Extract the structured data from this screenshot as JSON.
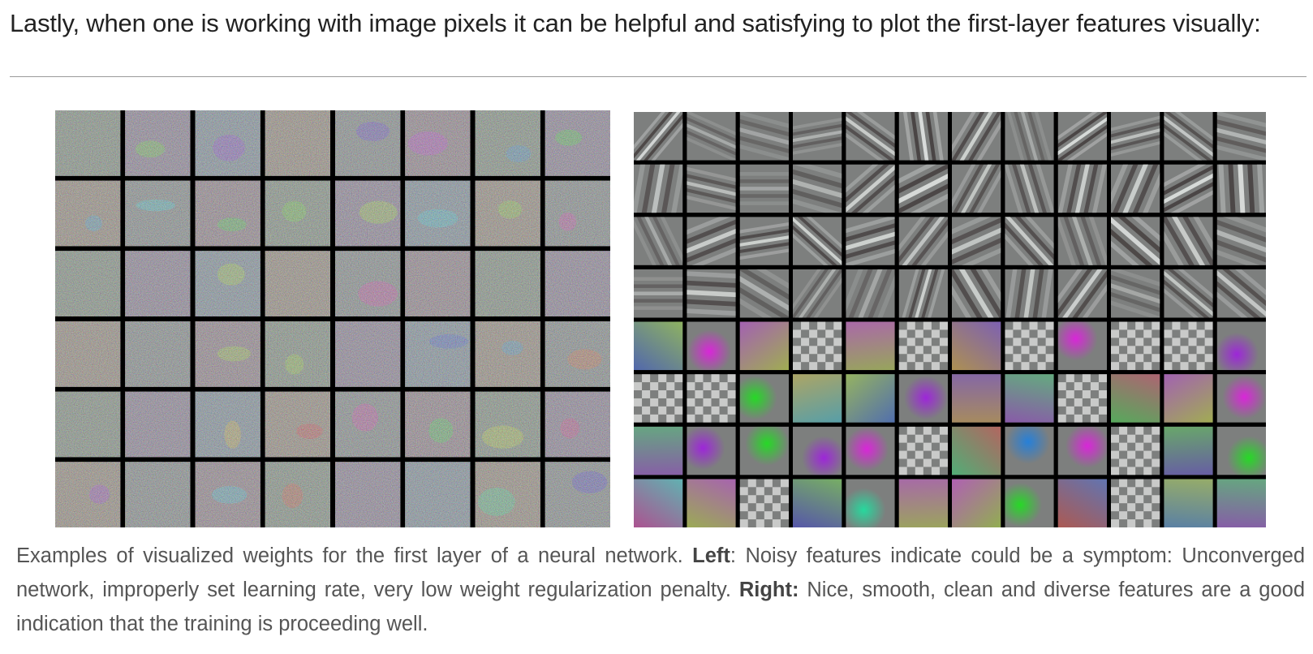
{
  "intro_text": "Lastly, when one is working with image pixels it can be helpful and satisfying to plot the first-layer features visually:",
  "figure": {
    "left_grid": {
      "cols": 8,
      "rows": 6,
      "description_icon": "noisy-filters-grid"
    },
    "right_grid": {
      "cols": 12,
      "rows": 8,
      "description_icon": "smooth-filters-grid"
    }
  },
  "caption": {
    "part1": "Examples of visualized weights for the first layer of a neural network. ",
    "left_label": "Left",
    "part2": ": Noisy features indicate could be a symptom: Unconverged network, improperly set learning rate, very low weight regularization penalty. ",
    "right_label": "Right:",
    "part3": " Nice, smooth, clean and diverse features are a good indication that the training is proceeding well."
  }
}
